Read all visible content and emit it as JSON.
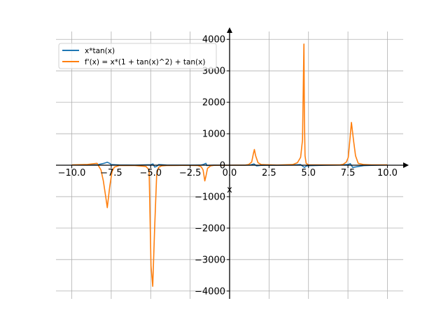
{
  "chart_data": {
    "type": "line",
    "title": "",
    "xlabel": "x",
    "ylabel": "",
    "xlim": [
      -11.0,
      11.0
    ],
    "ylim": [
      -4250,
      4250
    ],
    "grid": true,
    "legend_position": "top-left",
    "x_ticks": [
      -10.0,
      -7.5,
      -5.0,
      -2.5,
      0.0,
      2.5,
      5.0,
      7.5,
      10.0
    ],
    "x_tick_labels": [
      "−10.0",
      "−7.5",
      "−5.0",
      "−2.5",
      "0.0",
      "2.5",
      "5.0",
      "7.5",
      "10.0"
    ],
    "y_ticks": [
      -4000,
      -3000,
      -2000,
      -1000,
      0,
      1000,
      2000,
      3000,
      4000
    ],
    "y_tick_labels": [
      "−4000",
      "−3000",
      "−2000",
      "−1000",
      "0",
      "1000",
      "2000",
      "3000",
      "4000"
    ],
    "series": [
      {
        "name": "x*tan(x)",
        "color": "#1f77b4",
        "x": [
          -10,
          -9.0,
          -8.4,
          -8.0,
          -7.9,
          -7.75,
          -7.6,
          -7.5,
          -7.0,
          -6.0,
          -5.0,
          -4.85,
          -4.75,
          -4.6,
          -4.5,
          -4.0,
          -3.0,
          -2.2,
          -1.8,
          -1.65,
          -1.5,
          -1.45,
          -1.0,
          0,
          1.0,
          1.3,
          1.55,
          1.7,
          2.0,
          3.0,
          4.0,
          4.5,
          4.65,
          4.75,
          4.85,
          5.0,
          6.0,
          7.0,
          7.5,
          7.65,
          7.8,
          8.0,
          8.5,
          9.0,
          10.0
        ],
        "y": [
          6.5,
          4.1,
          13,
          54,
          70,
          95,
          60,
          20,
          6.0,
          1.7,
          17,
          40,
          -60,
          -30,
          20,
          4.6,
          0.4,
          3,
          8,
          25,
          60,
          -10,
          1.6,
          0,
          1.6,
          5,
          40,
          -20,
          -4.4,
          -0.4,
          4.6,
          20,
          -40,
          -70,
          -30,
          -17,
          -1.7,
          6,
          20,
          50,
          -70,
          -54,
          -13,
          -4.1,
          6.5
        ]
      },
      {
        "name": "f'(x) = x*(1 + tan(x)^2) + tan(x)",
        "color": "#ff7f0e",
        "x": [
          -10,
          -9.0,
          -8.4,
          -8.15,
          -8.0,
          -7.85,
          -7.75,
          -7.6,
          -7.45,
          -7.3,
          -7.0,
          -6.0,
          -5.3,
          -5.1,
          -4.98,
          -4.87,
          -4.75,
          -4.62,
          -4.5,
          -4.3,
          -4.0,
          -3.0,
          -2.0,
          -1.8,
          -1.68,
          -1.57,
          -1.5,
          -1.4,
          -1.2,
          -1.0,
          0,
          1.0,
          1.2,
          1.4,
          1.5,
          1.57,
          1.65,
          1.8,
          2.0,
          3.0,
          4.0,
          4.3,
          4.5,
          4.62,
          4.71,
          4.74,
          4.78,
          4.85,
          5.0,
          6.0,
          7.0,
          7.2,
          7.4,
          7.52,
          7.62,
          7.72,
          7.85,
          7.98,
          8.15,
          8.5,
          9.0,
          10.0
        ],
        "y": [
          10,
          25,
          60,
          -150,
          -500,
          -1000,
          -1350,
          -700,
          -200,
          -60,
          -10,
          -10,
          -40,
          -150,
          -3200,
          -3850,
          -2000,
          -300,
          -70,
          -20,
          -10,
          -5,
          -10,
          -50,
          -150,
          -500,
          -350,
          -100,
          -20,
          -5,
          0,
          5,
          20,
          100,
          350,
          500,
          300,
          80,
          20,
          5,
          20,
          80,
          250,
          800,
          3850,
          1500,
          300,
          60,
          10,
          10,
          10,
          30,
          100,
          250,
          800,
          1360,
          800,
          300,
          60,
          20,
          10,
          10
        ]
      }
    ]
  }
}
